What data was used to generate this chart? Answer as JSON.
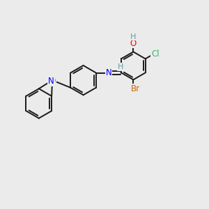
{
  "background_color": "#ebebeb",
  "bond_color": "#1a1a1a",
  "atom_colors": {
    "O": "#ff0000",
    "N": "#0000ff",
    "Cl": "#3cb371",
    "Br": "#cc6600",
    "H_teal": "#5f9ea0",
    "H": "#1a1a1a",
    "C": "#1a1a1a"
  },
  "figsize": [
    3.0,
    3.0
  ],
  "dpi": 100
}
